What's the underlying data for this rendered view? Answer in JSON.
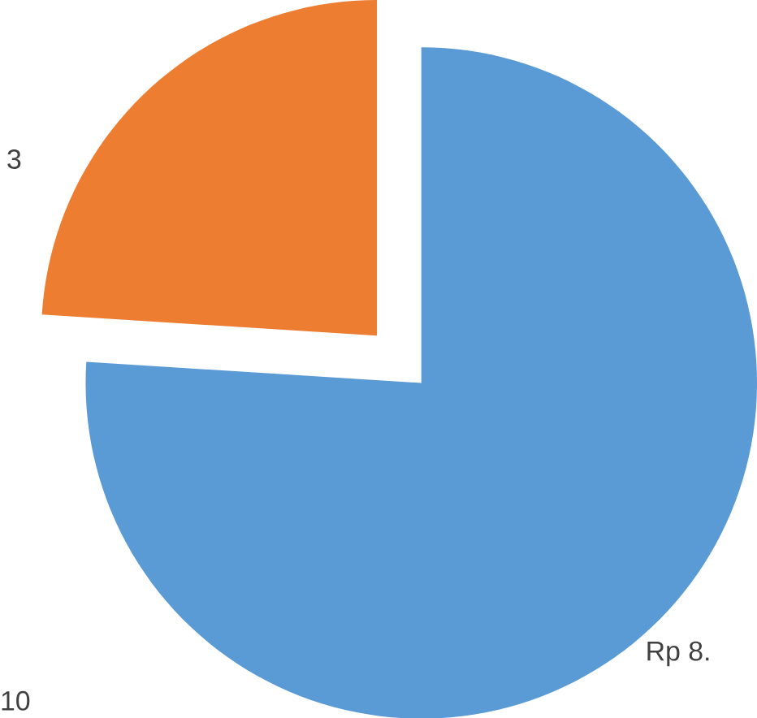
{
  "chart_data": {
    "type": "pie",
    "categories": [
      null,
      null
    ],
    "values": [
      76,
      24
    ],
    "colors": [
      "#5b9bd5",
      "#ed7d31"
    ],
    "annotations": [
      "3",
      "10",
      "Rp 8."
    ]
  }
}
